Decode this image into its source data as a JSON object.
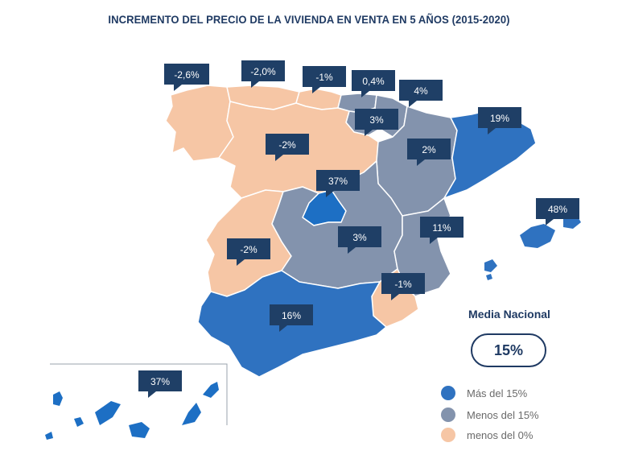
{
  "title": "INCREMENTO DEL PRECIO DE LA VIVIENDA EN VENTA EN 5 AÑOS (2015-2020)",
  "colors": {
    "mas_15": "#2f72c0",
    "menos_15": "#8393ad",
    "menos_0": "#f6c6a5",
    "madrid": "#1d6fc4",
    "callout": "#1f3f66",
    "title": "#1f3a63"
  },
  "callouts": {
    "galicia": "-2,6%",
    "asturias": "-2,0%",
    "cantabria": "-1%",
    "pais_vasco": "0,4%",
    "navarra": "4%",
    "rioja": "3%",
    "cataluna": "19%",
    "castilla_leon": "-2%",
    "aragon": "2%",
    "madrid": "37%",
    "baleares": "48%",
    "castilla_la_mancha": "3%",
    "valencia": "11%",
    "extremadura": "-2%",
    "murcia": "-1%",
    "andalucia": "16%",
    "canarias": "37%"
  },
  "media": {
    "label": "Media Nacional",
    "value": "15%"
  },
  "legend": [
    {
      "label": "Más del 15%",
      "color": "#2f72c0"
    },
    {
      "label": "Menos del 15%",
      "color": "#8393ad"
    },
    {
      "label": "menos del 0%",
      "color": "#f6c6a5"
    }
  ]
}
